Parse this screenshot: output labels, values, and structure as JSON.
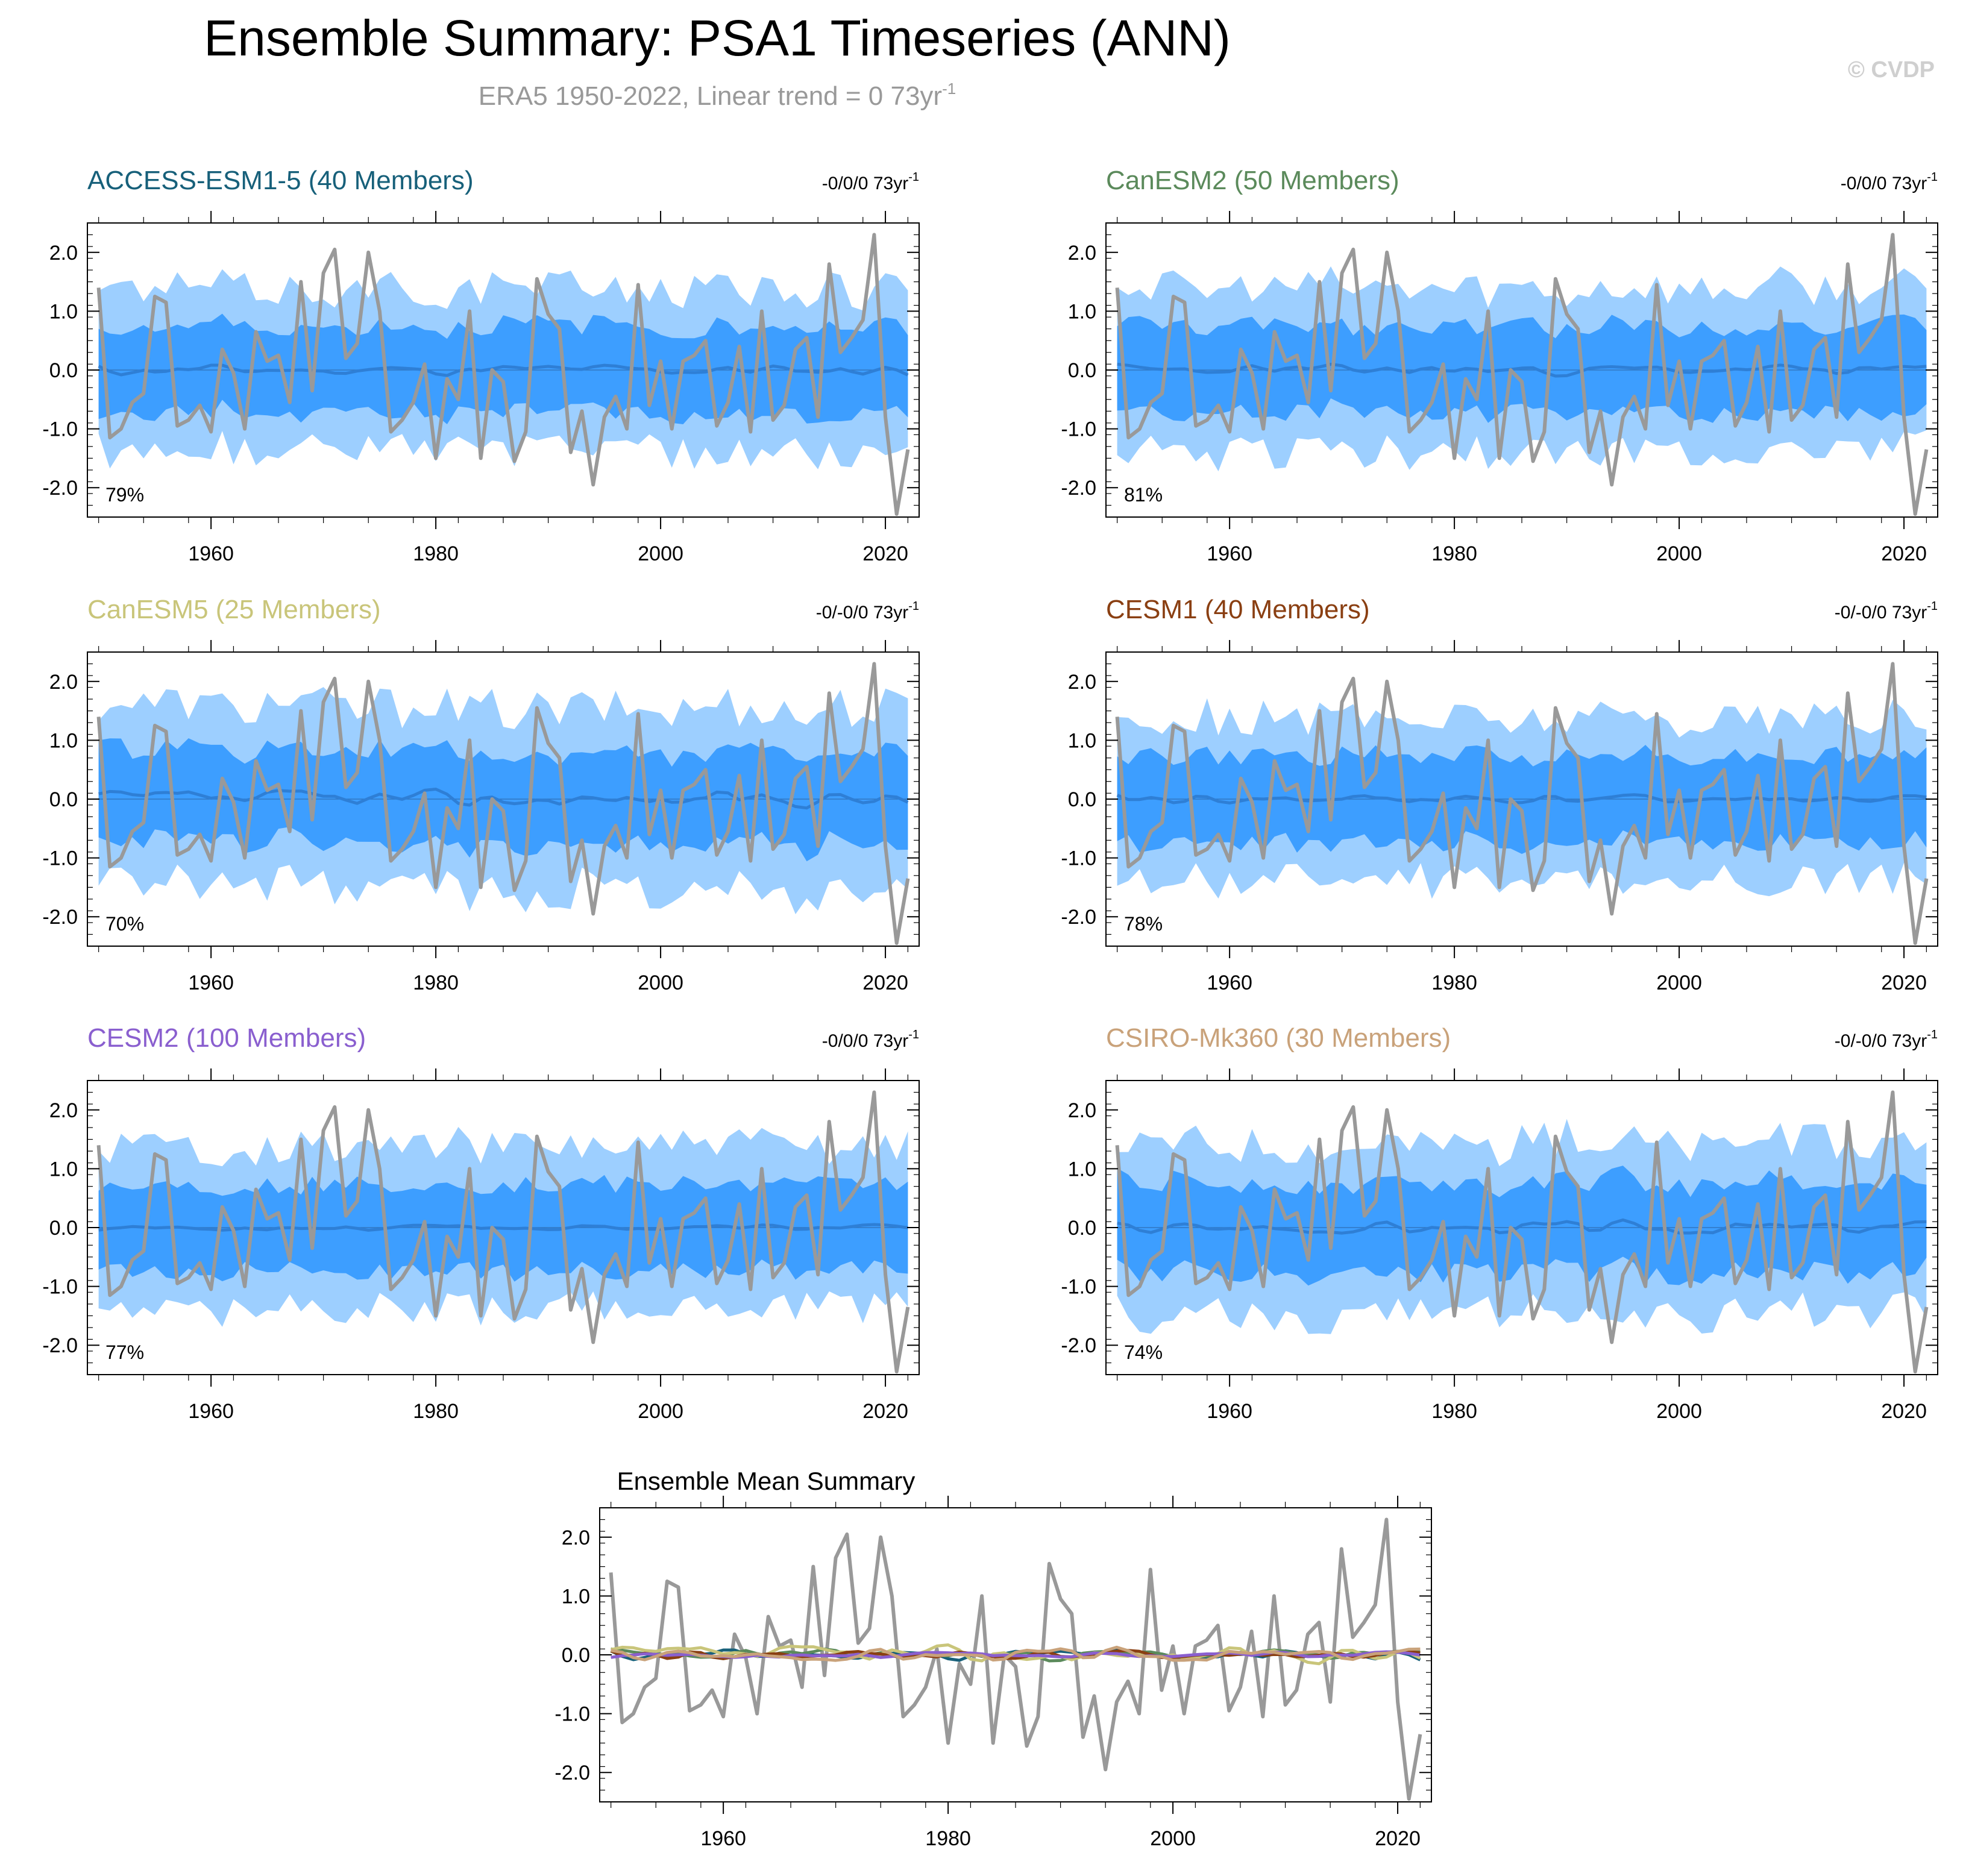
{
  "title": "Ensemble Summary: PSA1 Timeseries (ANN)",
  "subtitle_text": "ERA5 1950-2022, Linear trend = 0 73yr",
  "subtitle_sup": "-1",
  "watermark": "© CVDP",
  "colors": {
    "obs": "#999999",
    "outer_band": "#9dcfff",
    "inner_band": "#3d9eff",
    "ens_mean": "#2e7fd6",
    "zero_line": "#2a5d96"
  },
  "chart_data": [
    {
      "type": "line",
      "panel": "ACCESS-ESM1-5 (40 Members)",
      "title_color": "#17607a",
      "trend_text": "-0/0/0 73yr",
      "trend_sup": "-1",
      "percent_label": "79%",
      "xlim": [
        1949,
        2023
      ],
      "ylim": [
        -2.5,
        2.5
      ],
      "xticks": [
        "1960",
        "1980",
        "2000",
        "2020"
      ],
      "yticks": [
        "2.0",
        "1.0",
        "0.0",
        "-1.0",
        "-2.0"
      ],
      "seed": 11,
      "outer_amp": 1.35,
      "inner_amp": 0.72,
      "mean_amp": 0.13
    },
    {
      "type": "line",
      "panel": "CanESM2 (50 Members)",
      "title_color": "#5b8a5b",
      "trend_text": "-0/0/0 73yr",
      "trend_sup": "-1",
      "percent_label": "81%",
      "xlim": [
        1949,
        2023
      ],
      "ylim": [
        -2.5,
        2.5
      ],
      "xticks": [
        "1960",
        "1980",
        "2000",
        "2020"
      ],
      "yticks": [
        "2.0",
        "1.0",
        "0.0",
        "-1.0",
        "-2.0"
      ],
      "seed": 23,
      "outer_amp": 1.35,
      "inner_amp": 0.72,
      "mean_amp": 0.12
    },
    {
      "type": "line",
      "panel": "CanESM5 (25 Members)",
      "title_color": "#c9c57a",
      "trend_text": "-0/-0/0 73yr",
      "trend_sup": "-1",
      "percent_label": "70%",
      "xlim": [
        1949,
        2023
      ],
      "ylim": [
        -2.5,
        2.5
      ],
      "xticks": [
        "1960",
        "1980",
        "2000",
        "2020"
      ],
      "yticks": [
        "2.0",
        "1.0",
        "0.0",
        "-1.0",
        "-2.0"
      ],
      "seed": 37,
      "outer_amp": 1.5,
      "inner_amp": 0.75,
      "mean_amp": 0.2
    },
    {
      "type": "line",
      "panel": "CESM1 (40 Members)",
      "title_color": "#8a3f12",
      "trend_text": "-0/-0/0 73yr",
      "trend_sup": "-1",
      "percent_label": "78%",
      "xlim": [
        1949,
        2023
      ],
      "ylim": [
        -2.5,
        2.5
      ],
      "xticks": [
        "1960",
        "1980",
        "2000",
        "2020"
      ],
      "yticks": [
        "2.0",
        "1.0",
        "0.0",
        "-1.0",
        "-2.0"
      ],
      "seed": 41,
      "outer_amp": 1.35,
      "inner_amp": 0.72,
      "mean_amp": 0.12
    },
    {
      "type": "line",
      "panel": "CESM2 (100 Members)",
      "title_color": "#8a5fcf",
      "trend_text": "-0/0/0 73yr",
      "trend_sup": "-1",
      "percent_label": "77%",
      "xlim": [
        1949,
        2023
      ],
      "ylim": [
        -2.5,
        2.5
      ],
      "xticks": [
        "1960",
        "1980",
        "2000",
        "2020"
      ],
      "yticks": [
        "2.0",
        "1.0",
        "0.0",
        "-1.0",
        "-2.0"
      ],
      "seed": 53,
      "outer_amp": 1.35,
      "inner_amp": 0.72,
      "mean_amp": 0.07
    },
    {
      "type": "line",
      "panel": "CSIRO-Mk360 (30 Members)",
      "title_color": "#c9a27a",
      "trend_text": "-0/-0/0 73yr",
      "trend_sup": "-1",
      "percent_label": "74%",
      "xlim": [
        1949,
        2023
      ],
      "ylim": [
        -2.5,
        2.5
      ],
      "xticks": [
        "1960",
        "1980",
        "2000",
        "2020"
      ],
      "yticks": [
        "2.0",
        "1.0",
        "0.0",
        "-1.0",
        "-2.0"
      ],
      "seed": 67,
      "outer_amp": 1.4,
      "inner_amp": 0.75,
      "mean_amp": 0.15
    },
    {
      "type": "line",
      "panel": "Ensemble Mean Summary",
      "title_color": "#000000",
      "xlim": [
        1949,
        2023
      ],
      "ylim": [
        -2.5,
        2.5
      ],
      "xticks": [
        "1960",
        "1980",
        "2000",
        "2020"
      ],
      "yticks": [
        "2.0",
        "1.0",
        "0.0",
        "-1.0",
        "-2.0"
      ],
      "series_colors": [
        "#17607a",
        "#5b8a5b",
        "#c9c57a",
        "#8a3f12",
        "#8a5fcf",
        "#c9a27a"
      ]
    }
  ],
  "observed_series": {
    "name": "ERA5",
    "years": [
      1950,
      2022
    ],
    "values": [
      1.4,
      -1.15,
      -1.0,
      -0.55,
      -0.4,
      1.25,
      1.15,
      -0.95,
      -0.85,
      -0.6,
      -1.05,
      0.35,
      -0.05,
      -1.0,
      0.65,
      0.15,
      0.25,
      -0.55,
      1.5,
      -0.35,
      1.65,
      2.05,
      0.2,
      0.45,
      2.0,
      1.0,
      -1.05,
      -0.85,
      -0.55,
      0.1,
      -1.5,
      -0.15,
      -0.5,
      1.0,
      -1.5,
      0.0,
      -0.2,
      -1.55,
      -1.05,
      1.55,
      0.95,
      0.7,
      -1.4,
      -0.7,
      -1.95,
      -0.8,
      -0.45,
      -1.0,
      1.45,
      -0.6,
      0.15,
      -1.0,
      0.15,
      0.25,
      0.5,
      -0.95,
      -0.55,
      0.4,
      -1.05,
      1.0,
      -0.85,
      -0.6,
      0.35,
      0.55,
      -0.8,
      1.8,
      0.3,
      0.55,
      0.85,
      2.3,
      -0.8,
      -2.45,
      -1.35
    ]
  }
}
